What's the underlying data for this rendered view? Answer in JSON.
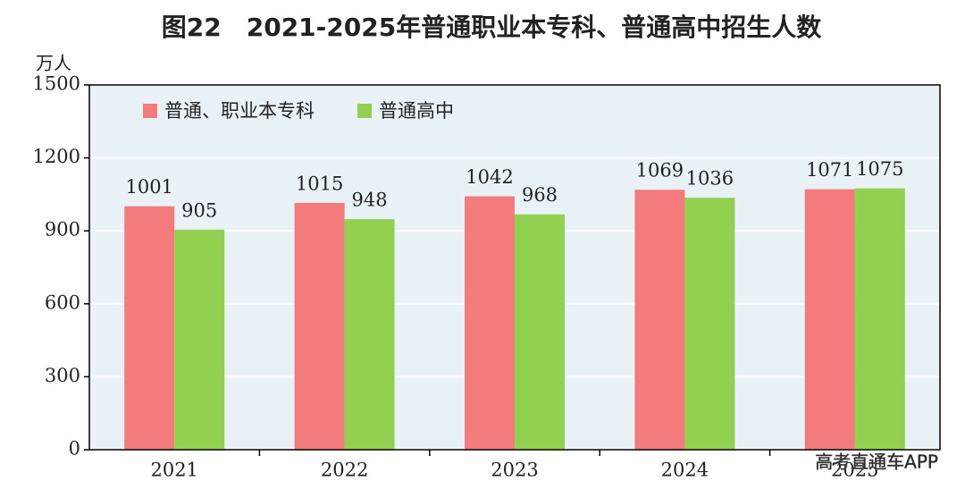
{
  "chart_data": {
    "type": "bar",
    "title": "图22　2021-2025年普通职业本专科、普通高中招生人数",
    "y_label": "万人",
    "categories": [
      "2021",
      "2022",
      "2023",
      "2024",
      "2025"
    ],
    "series": [
      {
        "name": "普通、职业本专科",
        "color": "#f47b7b",
        "values": [
          1001,
          1015,
          1042,
          1069,
          1071
        ]
      },
      {
        "name": "普通高中",
        "color": "#92d050",
        "values": [
          905,
          948,
          968,
          1036,
          1075
        ]
      }
    ],
    "ylim": [
      0,
      1500
    ],
    "yticks": [
      0,
      300,
      600,
      900,
      1200,
      1500
    ],
    "grid": true,
    "legend": "top-left",
    "background": "#e9f2f7",
    "watermark": "高考直通车APP"
  }
}
